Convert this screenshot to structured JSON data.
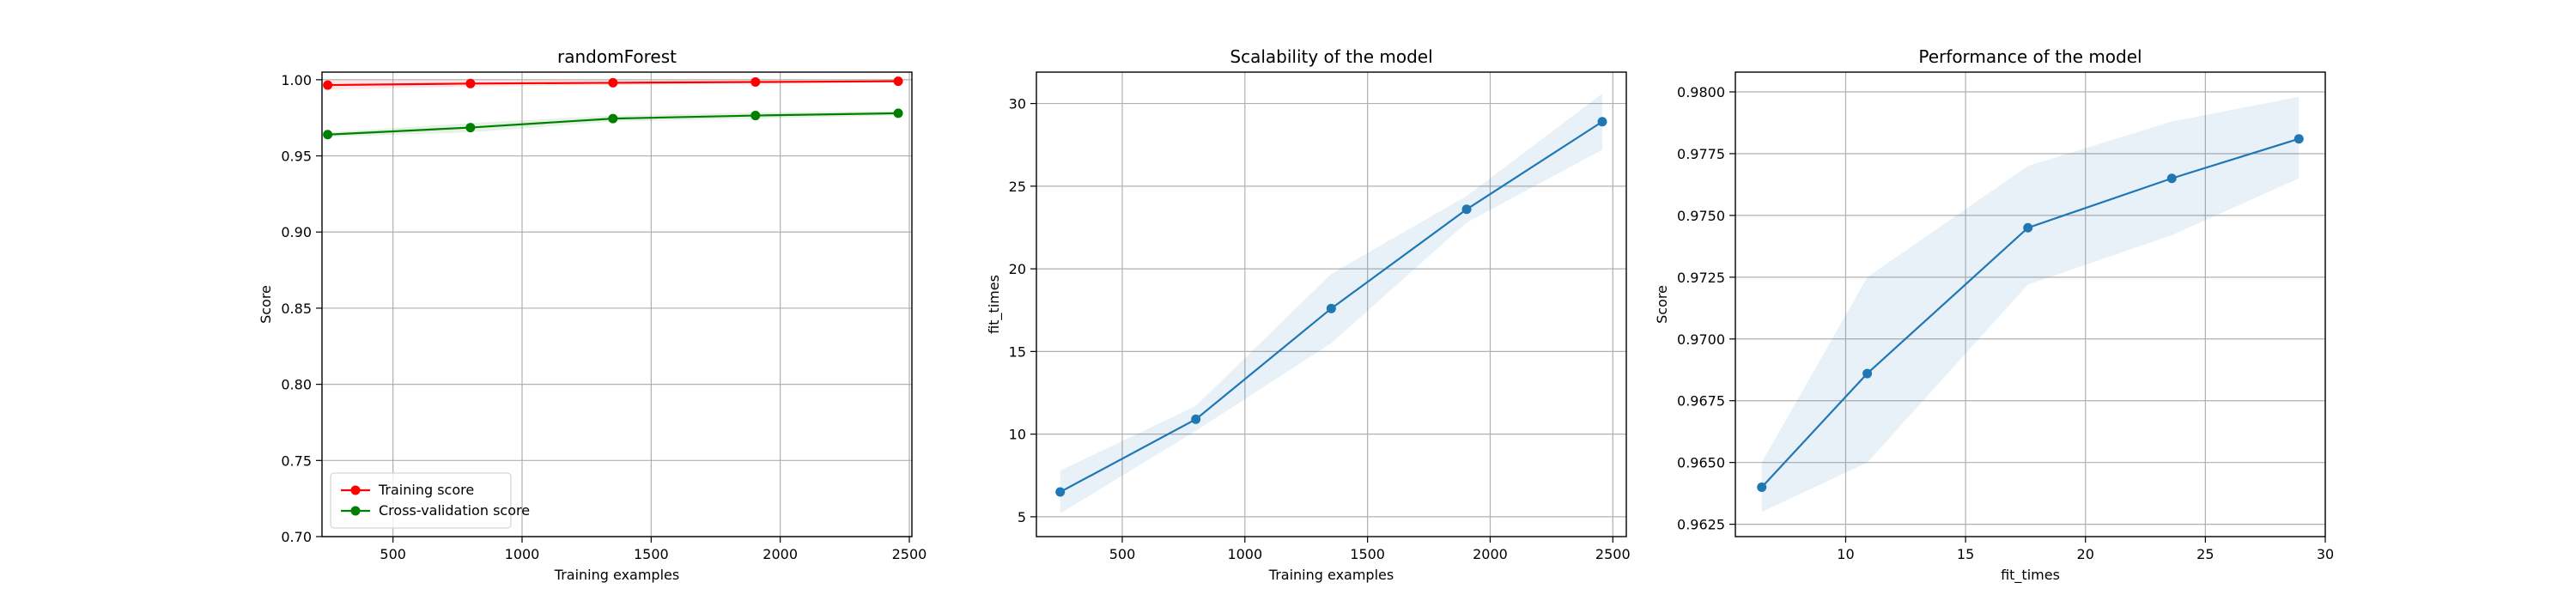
{
  "chart_data": [
    {
      "type": "line",
      "title": "randomForest",
      "xlabel": "Training examples",
      "ylabel": "Score",
      "xlim": [
        225,
        2510
      ],
      "ylim": [
        0.7,
        1.005
      ],
      "xticks": [
        500,
        1000,
        1500,
        2000,
        2500
      ],
      "yticks": [
        0.7,
        0.75,
        0.8,
        0.85,
        0.9,
        0.95,
        1.0
      ],
      "yticks_format": 2,
      "grid": true,
      "legend": "lower-left",
      "series": [
        {
          "name": "Training score",
          "color": "#ff0000",
          "fill_color": "#ff0000",
          "x": [
            247,
            800,
            1352,
            1904,
            2457
          ],
          "y": [
            0.9965,
            0.9975,
            0.998,
            0.9985,
            0.999
          ],
          "y_lower": [
            0.9935,
            0.9955,
            0.9965,
            0.9975,
            0.9982
          ],
          "y_upper": [
            0.9995,
            0.9995,
            0.9995,
            0.9995,
            0.9998
          ]
        },
        {
          "name": "Cross-validation score",
          "color": "#008000",
          "fill_color": "#008000",
          "x": [
            247,
            800,
            1352,
            1904,
            2457
          ],
          "y": [
            0.964,
            0.9686,
            0.9745,
            0.9765,
            0.978
          ],
          "y_lower": [
            0.9625,
            0.9655,
            0.9725,
            0.9745,
            0.9765
          ],
          "y_upper": [
            0.9655,
            0.9715,
            0.9765,
            0.9785,
            0.9795
          ]
        }
      ]
    },
    {
      "type": "line",
      "title": "Scalability of the model",
      "xlabel": "Training examples",
      "ylabel": "fit_times",
      "xlim": [
        150,
        2555
      ],
      "ylim": [
        3.8,
        31.9
      ],
      "xticks": [
        500,
        1000,
        1500,
        2000,
        2500
      ],
      "yticks": [
        5,
        10,
        15,
        20,
        25,
        30
      ],
      "yticks_format": 0,
      "grid": true,
      "series": [
        {
          "color": "#1f77b4",
          "fill_color": "#1f77b4",
          "x": [
            247,
            800,
            1352,
            1904,
            2457
          ],
          "y": [
            6.5,
            10.9,
            17.6,
            23.6,
            28.9
          ],
          "y_lower": [
            5.2,
            10.2,
            15.5,
            22.8,
            27.2
          ],
          "y_upper": [
            7.8,
            11.7,
            19.7,
            24.4,
            30.6
          ]
        }
      ]
    },
    {
      "type": "line",
      "title": "Performance of the model",
      "xlabel": "fit_times",
      "ylabel": "Score",
      "xlim": [
        5.4,
        30
      ],
      "ylim": [
        0.962,
        0.9808
      ],
      "xticks": [
        10,
        15,
        20,
        25,
        30
      ],
      "yticks": [
        0.9625,
        0.965,
        0.9675,
        0.97,
        0.9725,
        0.975,
        0.9775,
        0.98
      ],
      "yticks_format": 4,
      "grid": true,
      "series": [
        {
          "color": "#1f77b4",
          "fill_color": "#1f77b4",
          "x": [
            6.5,
            10.9,
            17.6,
            23.6,
            28.9
          ],
          "y": [
            0.964,
            0.9686,
            0.9745,
            0.9765,
            0.9781
          ],
          "y_lower": [
            0.963,
            0.965,
            0.9722,
            0.9742,
            0.9765
          ],
          "y_upper": [
            0.965,
            0.9725,
            0.977,
            0.9788,
            0.9798
          ]
        }
      ]
    }
  ]
}
